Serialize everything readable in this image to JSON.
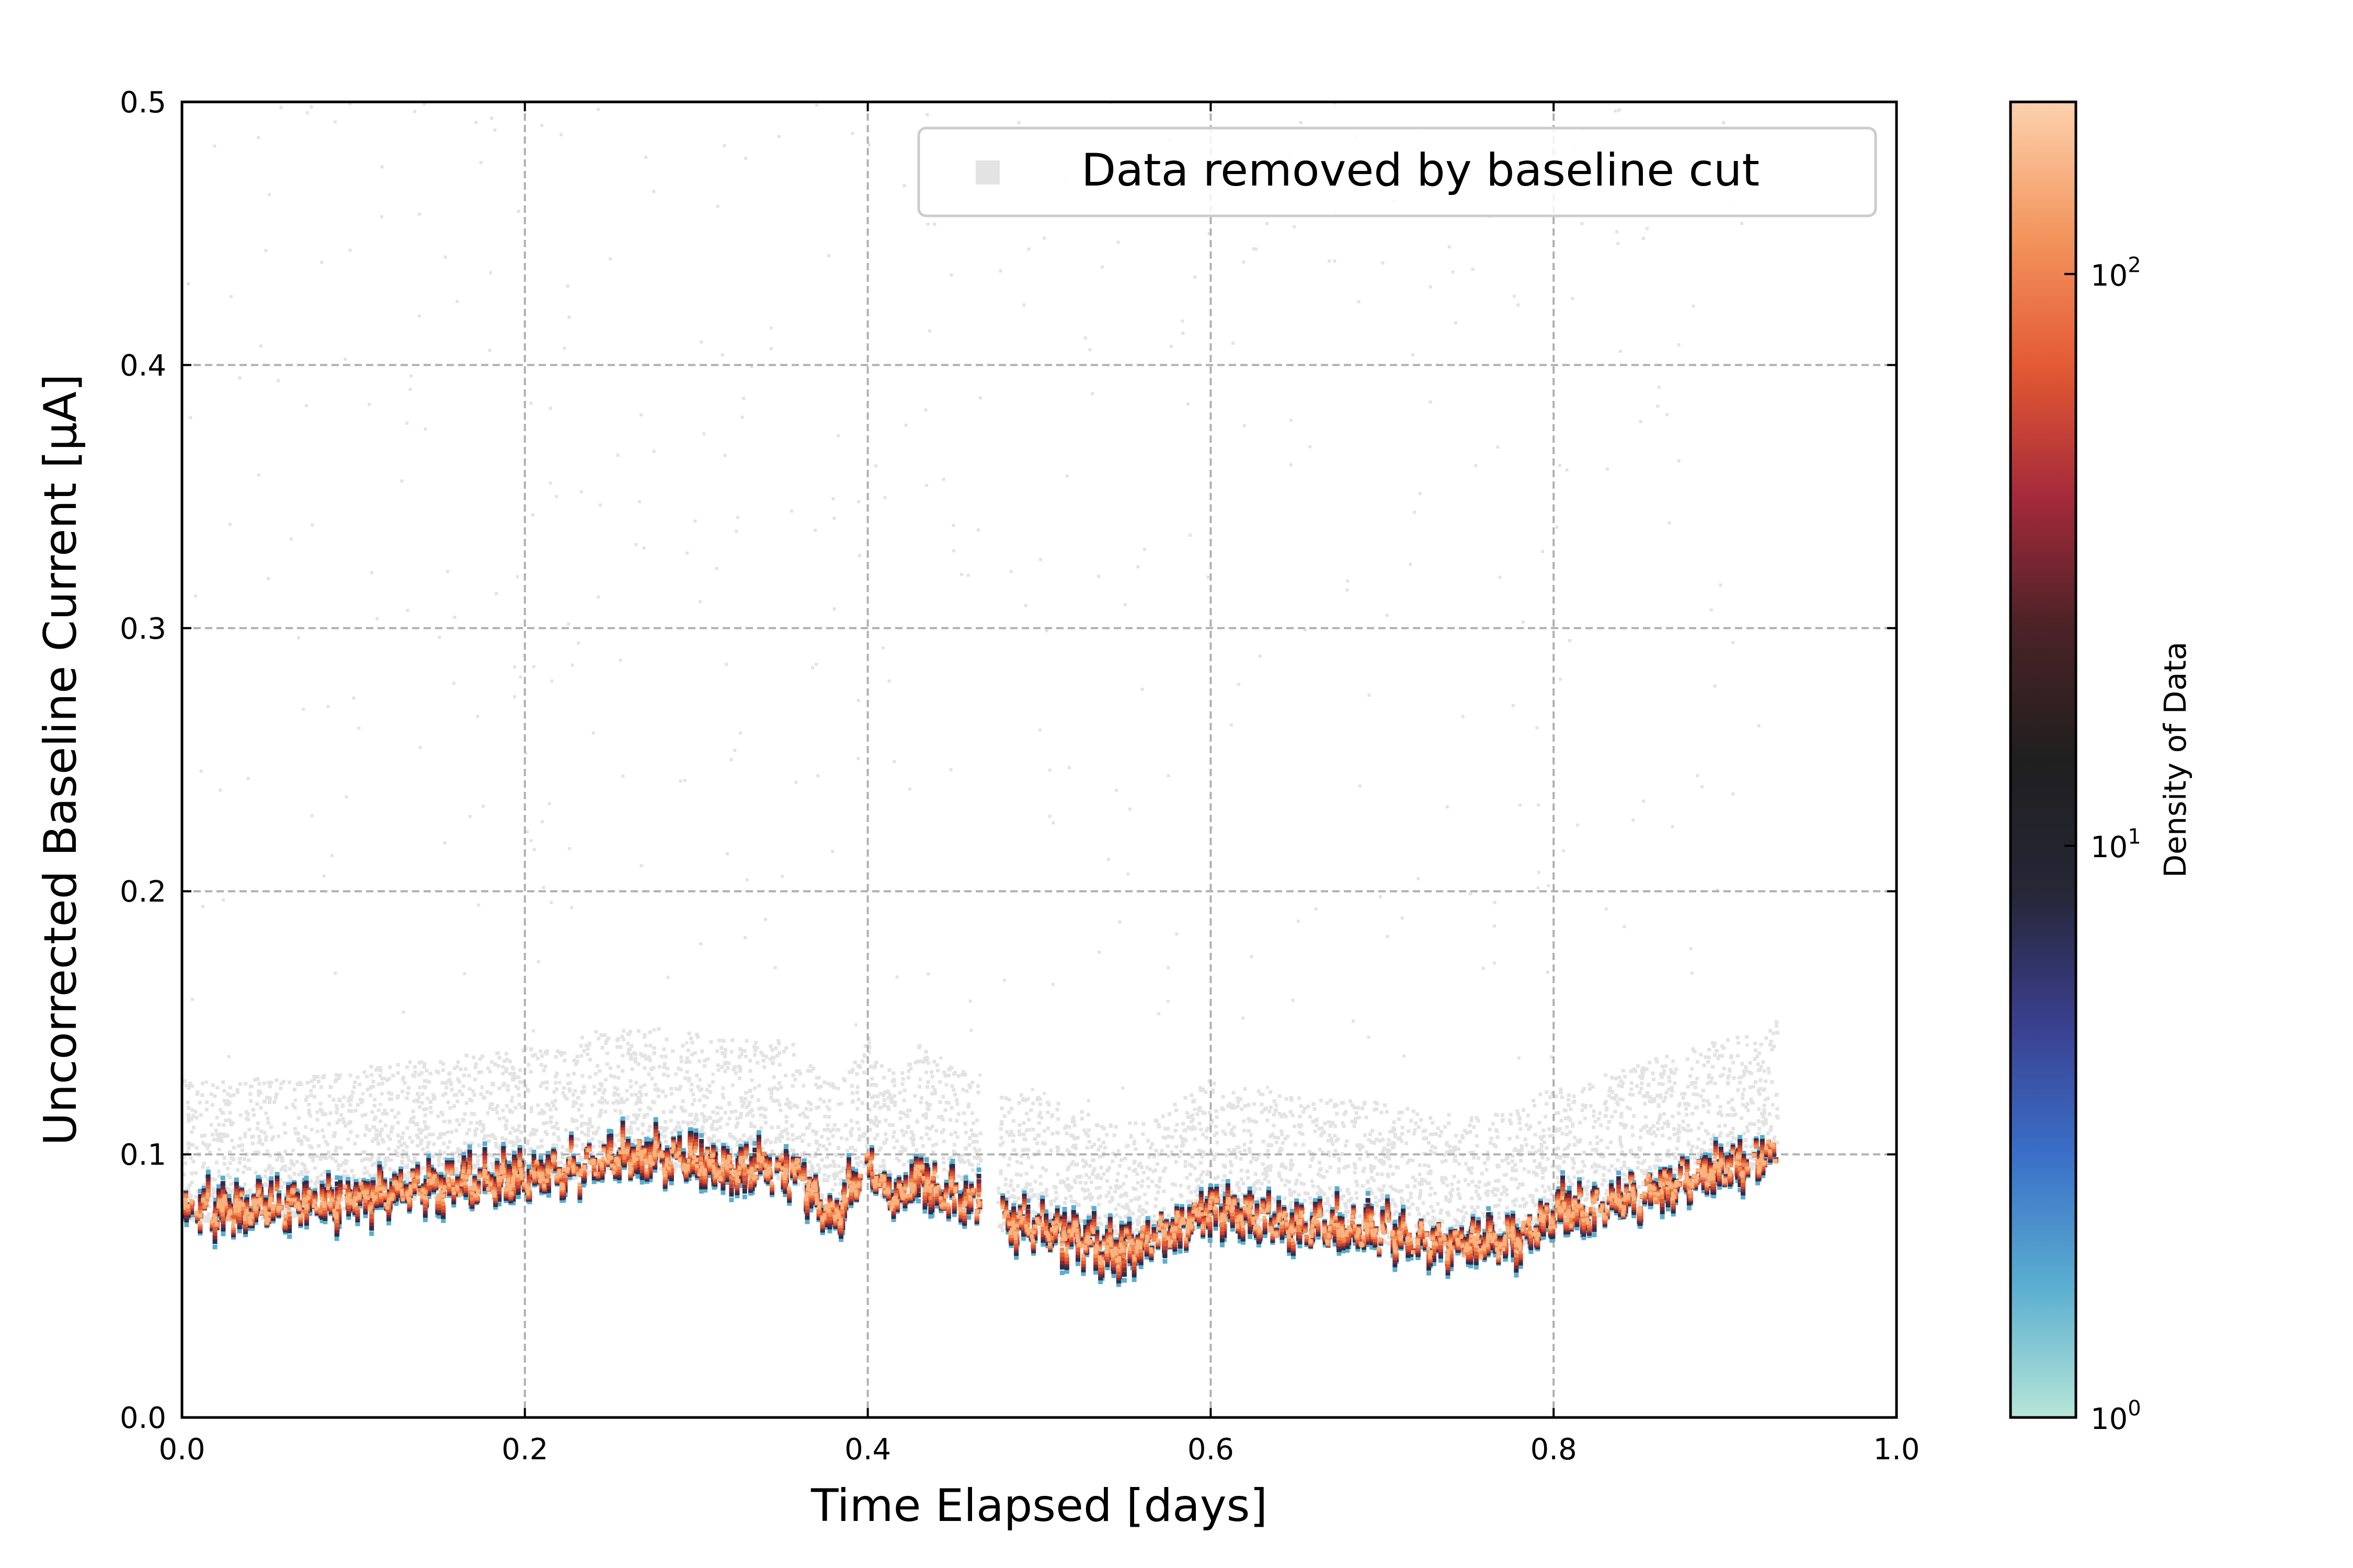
{
  "chart_data": {
    "type": "heatmap",
    "title": "",
    "xlabel": "Time Elapsed [days]",
    "ylabel": "Uncorrected Baseline Current [µA]",
    "xlim": [
      0.0,
      1.0
    ],
    "ylim": [
      0.0,
      0.5
    ],
    "x_tick_labels": [
      "0.0",
      "0.2",
      "0.4",
      "0.6",
      "0.8",
      "1.0"
    ],
    "x_ticks": [
      0.0,
      0.2,
      0.4,
      0.6,
      0.8,
      1.0
    ],
    "y_tick_labels": [
      "0.0",
      "0.1",
      "0.2",
      "0.3",
      "0.4",
      "0.5"
    ],
    "y_ticks": [
      0.0,
      0.1,
      0.2,
      0.3,
      0.4,
      0.5
    ],
    "grid": true,
    "legend": {
      "placement": "top-right",
      "entries": [
        {
          "label": "Data removed by baseline cut",
          "color": "#e3e3e3"
        }
      ]
    },
    "colorbar": {
      "label": "Density of Data",
      "scale": "log",
      "range": [
        1,
        200
      ],
      "ticks": [
        {
          "value": 1,
          "base": "10",
          "exp": "0"
        },
        {
          "value": 10,
          "base": "10",
          "exp": "1"
        },
        {
          "value": 100,
          "base": "10",
          "exp": "2"
        }
      ],
      "colors": [
        "#b7e6d8",
        "#5aaed0",
        "#3a6fc8",
        "#3a3f8e",
        "#262636",
        "#1f1f1f",
        "#4a2226",
        "#a52a3a",
        "#e45a33",
        "#f3965e",
        "#fcd1ad"
      ]
    },
    "segments": [
      {
        "x_start": 0.0,
        "x_end": 0.465
      },
      {
        "x_start": 0.475,
        "x_end": 0.93
      }
    ],
    "trace": {
      "name": "",
      "x": [
        0.0,
        0.02,
        0.04,
        0.06,
        0.08,
        0.1,
        0.12,
        0.14,
        0.16,
        0.18,
        0.2,
        0.22,
        0.24,
        0.26,
        0.28,
        0.3,
        0.32,
        0.34,
        0.36,
        0.37,
        0.38,
        0.39,
        0.4,
        0.41,
        0.42,
        0.43,
        0.44,
        0.45,
        0.465,
        0.475,
        0.5,
        0.52,
        0.54,
        0.56,
        0.58,
        0.6,
        0.62,
        0.64,
        0.66,
        0.68,
        0.7,
        0.72,
        0.74,
        0.76,
        0.78,
        0.8,
        0.82,
        0.84,
        0.86,
        0.88,
        0.9,
        0.92,
        0.93
      ],
      "y": [
        0.08,
        0.079,
        0.08,
        0.081,
        0.082,
        0.084,
        0.086,
        0.088,
        0.089,
        0.09,
        0.092,
        0.094,
        0.098,
        0.1,
        0.099,
        0.097,
        0.095,
        0.096,
        0.093,
        0.082,
        0.078,
        0.088,
        0.098,
        0.085,
        0.084,
        0.094,
        0.086,
        0.084,
        0.083,
        0.076,
        0.073,
        0.069,
        0.064,
        0.068,
        0.073,
        0.08,
        0.078,
        0.074,
        0.073,
        0.072,
        0.071,
        0.069,
        0.067,
        0.066,
        0.07,
        0.078,
        0.08,
        0.084,
        0.088,
        0.092,
        0.096,
        0.1,
        0.103
      ]
    },
    "removed_band": {
      "upper_offset": 0.038,
      "lower_offset": 0.004,
      "sparse_max": 0.48
    }
  }
}
